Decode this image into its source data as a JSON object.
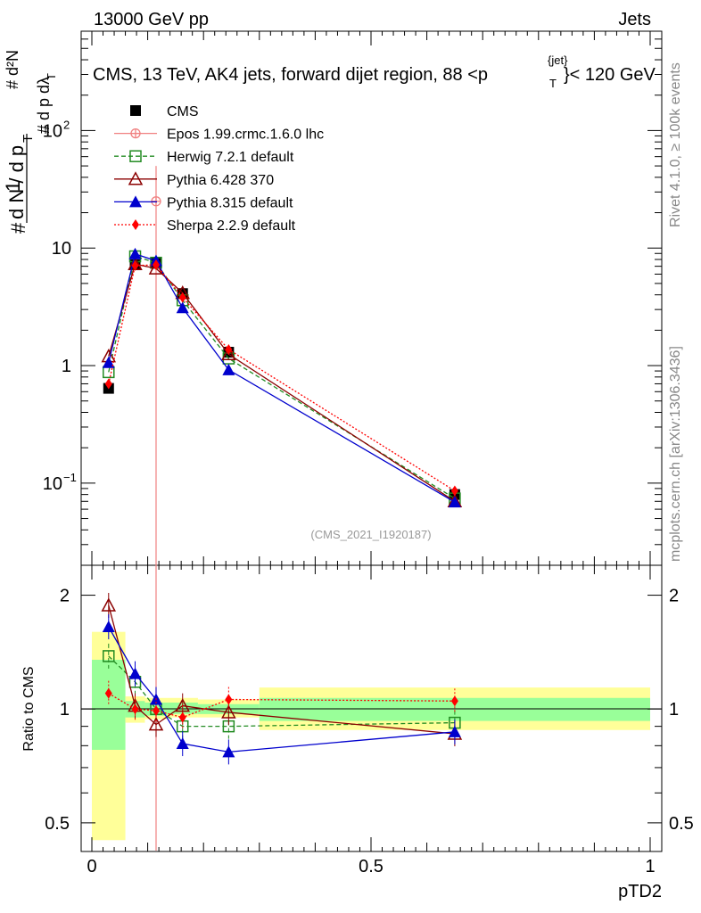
{
  "header": {
    "energy": "13000 GeV pp",
    "category": "Jets",
    "plot_title": "CMS, 13 TeV, AK4 jets, forward dijet region, 88 <",
    "plot_title_pt": "p",
    "plot_title_sup": "{jet}",
    "plot_title_sub": "T",
    "plot_title_end": "}< 120 GeV",
    "analysis_id": "(CMS_2021_I1920187)",
    "side_label_rivet": "Rivet 4.1.0, ≥ 100k events",
    "side_label_mcplots": "mcplots.cern.ch [arXiv:1306.3436]"
  },
  "axes": {
    "ylabel_main": "1/N dN/dp_T dλ",
    "ylabel_ratio": "Ratio to CMS",
    "xlabel": "pTD2",
    "main_yticks": [
      {
        "label": "10",
        "sup": "−1",
        "value": 0.1
      },
      {
        "label": "1",
        "sup": "",
        "value": 1
      },
      {
        "label": "10",
        "sup": "",
        "value": 10
      },
      {
        "label": "10",
        "sup": "2",
        "value": 100
      }
    ],
    "ratio_yticks": [
      {
        "label": "0.5",
        "value": 0.5
      },
      {
        "label": "1",
        "value": 1
      },
      {
        "label": "2",
        "value": 2
      }
    ],
    "xticks": [
      {
        "label": "0",
        "value": 0
      },
      {
        "label": "0.5",
        "value": 0.5
      },
      {
        "label": "1",
        "value": 1
      }
    ]
  },
  "legend": [
    {
      "name": "CMS",
      "color": "#000000",
      "marker": "square-filled",
      "dash": ""
    },
    {
      "name": "Epos 1.99.crmc.1.6.0 lhc",
      "color": "#f08080",
      "marker": "circle-cross",
      "dash": ""
    },
    {
      "name": "Herwig 7.2.1 default",
      "color": "#228b22",
      "marker": "square-open",
      "dash": "5,3"
    },
    {
      "name": "Pythia 6.428 370",
      "color": "#8b0000",
      "marker": "triangle-open",
      "dash": ""
    },
    {
      "name": "Pythia 8.315 default",
      "color": "#0000cd",
      "marker": "triangle-filled",
      "dash": ""
    },
    {
      "name": "Sherpa 2.2.9 default",
      "color": "#ff0000",
      "marker": "diamond-filled",
      "dash": "2,2"
    }
  ],
  "chart_data": {
    "type": "line",
    "title": "CMS, 13 TeV, AK4 jets, forward dijet region, 88 < p_T^{jet} < 120 GeV",
    "xlabel": "pTD2",
    "ylabel": "1/N dN/dp_T dλ",
    "xlim": [
      0,
      1
    ],
    "ylim": [
      0.02,
      700
    ],
    "yscale": "log",
    "ratio_ylim": [
      0.42,
      2.4
    ],
    "ratio_yscale": "log",
    "bin_edges": [
      0,
      0.06,
      0.095,
      0.135,
      0.19,
      0.3,
      1.0
    ],
    "x": [
      0.03,
      0.0775,
      0.115,
      0.1625,
      0.245,
      0.65
    ],
    "series": [
      {
        "name": "CMS",
        "values": [
          0.64,
          7.2,
          7.4,
          4.1,
          1.3,
          0.08
        ],
        "ratio": [
          1,
          1,
          1,
          1,
          1,
          1
        ],
        "ratio_band_inner": [
          [
            0.78,
            1.35
          ],
          [
            0.95,
            1.05
          ],
          [
            0.96,
            1.04
          ],
          [
            0.97,
            1.04
          ],
          [
            0.97,
            1.03
          ],
          [
            0.93,
            1.07
          ]
        ],
        "ratio_band_outer": [
          [
            0.45,
            1.6
          ],
          [
            0.92,
            1.08
          ],
          [
            0.94,
            1.07
          ],
          [
            0.95,
            1.07
          ],
          [
            0.95,
            1.06
          ],
          [
            0.88,
            1.14
          ]
        ]
      },
      {
        "name": "Epos 1.99.crmc.1.6.0 lhc",
        "values": [
          null,
          null,
          25,
          null,
          null,
          null
        ],
        "err_low": [
          null,
          null,
          0.02,
          null,
          null,
          null
        ],
        "err_high": [
          null,
          null,
          50,
          null,
          null,
          null
        ],
        "ratio": [
          null,
          null,
          null,
          null,
          null,
          null
        ]
      },
      {
        "name": "Herwig 7.2.1 default",
        "values": [
          0.88,
          8.5,
          7.5,
          3.6,
          1.15,
          0.074
        ],
        "ratio": [
          1.38,
          1.18,
          1.0,
          0.9,
          0.9,
          0.92
        ]
      },
      {
        "name": "Pythia 6.428 370",
        "values": [
          1.2,
          7.3,
          6.7,
          4.15,
          1.25,
          0.07
        ],
        "ratio": [
          1.88,
          1.02,
          0.91,
          1.02,
          0.98,
          0.86
        ]
      },
      {
        "name": "Pythia 8.315 default",
        "values": [
          1.06,
          8.9,
          7.8,
          3.1,
          0.92,
          0.069
        ],
        "ratio": [
          1.65,
          1.24,
          1.06,
          0.81,
          0.77,
          0.87
        ]
      },
      {
        "name": "Sherpa 2.2.9 default",
        "values": [
          0.7,
          7.1,
          7.2,
          3.8,
          1.37,
          0.086
        ],
        "ratio": [
          1.1,
          1.0,
          0.99,
          0.95,
          1.06,
          1.05
        ]
      }
    ]
  }
}
